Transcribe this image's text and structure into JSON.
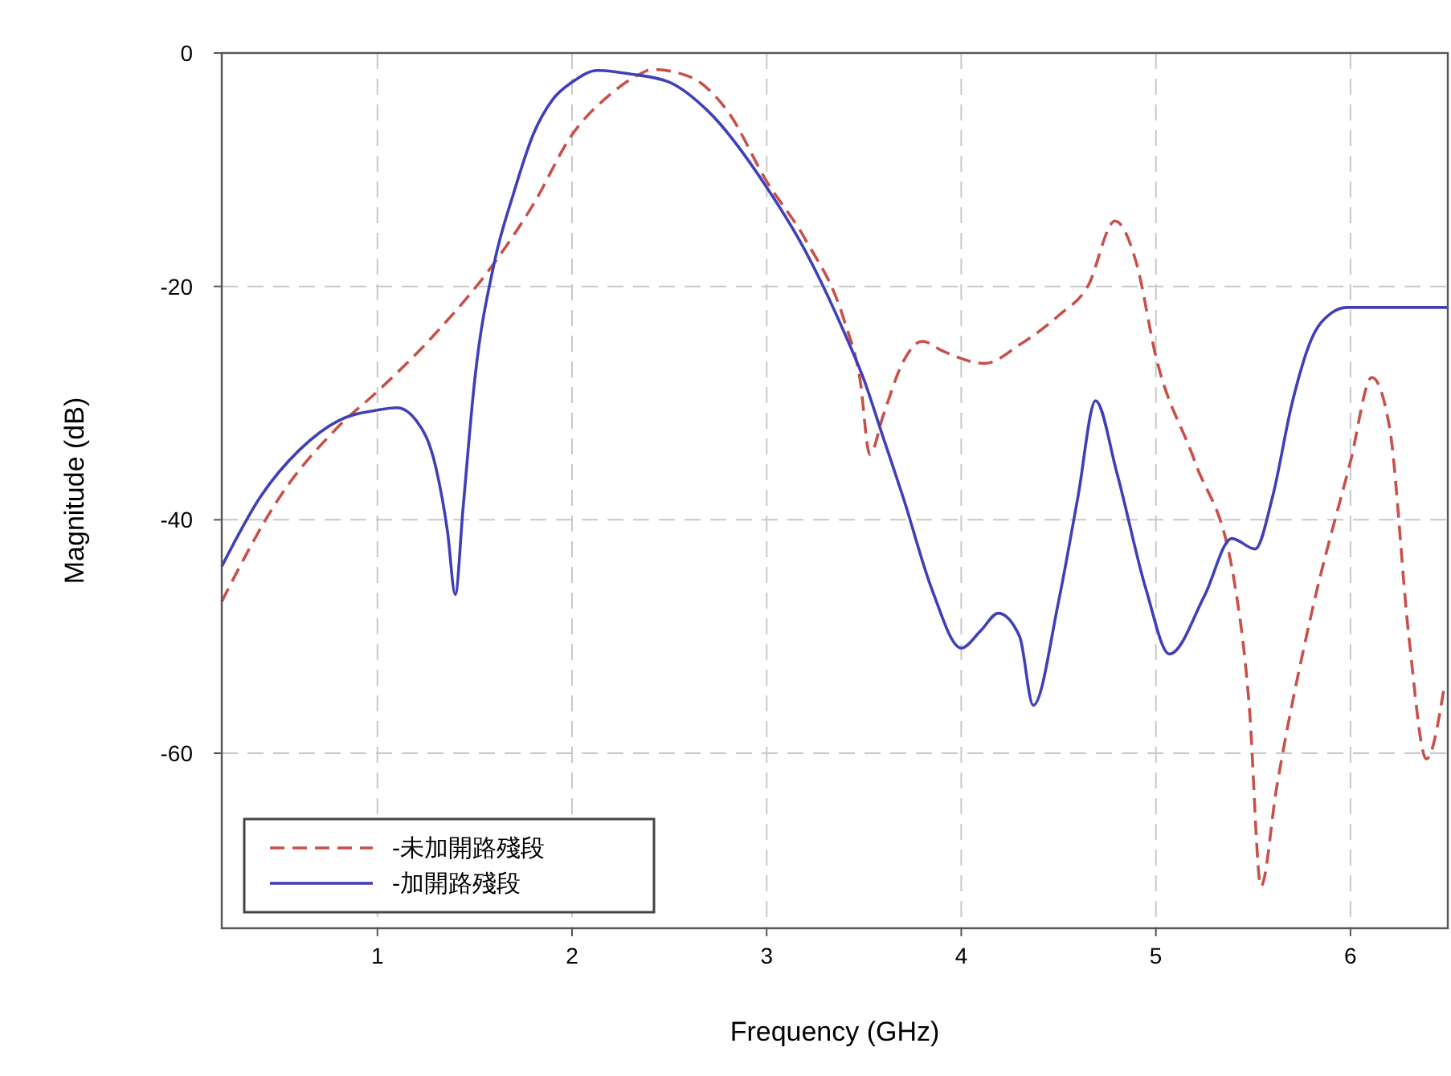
{
  "chart_data": {
    "type": "line",
    "xlabel": "Frequency (GHz)",
    "ylabel": "Magnitude (dB)",
    "xlim": [
      0.2,
      6.5
    ],
    "xticks": [
      1,
      2,
      3,
      4,
      5,
      6
    ],
    "ylim": [
      -75,
      0
    ],
    "yticks": [
      0,
      -20,
      -40,
      -60
    ],
    "grid": true,
    "legend": "bottom left",
    "series": [
      {
        "name": "-未加開路殘段",
        "color": "#c8504a",
        "line_style": "dashed",
        "x": [
          0.2,
          0.5,
          0.8,
          1.0,
          1.3,
          1.6,
          1.8,
          2.0,
          2.2,
          2.35,
          2.41,
          2.6,
          2.8,
          3.0,
          3.2,
          3.4,
          3.48,
          3.53,
          3.6,
          3.7,
          3.8,
          3.9,
          4.12,
          4.3,
          4.5,
          4.65,
          4.79,
          4.9,
          5.0,
          5.2,
          5.4,
          5.48,
          5.54,
          5.62,
          5.8,
          6.0,
          6.11,
          6.2,
          6.3,
          6.39,
          6.48
        ],
        "values": [
          -47,
          -38,
          -32,
          -29,
          -24,
          -18,
          -13,
          -7,
          -3.5,
          -1.8,
          -1.4,
          -2,
          -5,
          -11,
          -16,
          -23,
          -28,
          -34.4,
          -31,
          -26.5,
          -24.7,
          -25.5,
          -26.6,
          -25,
          -22.5,
          -20,
          -14.4,
          -18,
          -26,
          -35,
          -45,
          -56,
          -71.4,
          -63,
          -48,
          -35,
          -27.8,
          -32,
          -50,
          -60.5,
          -54.5
        ]
      },
      {
        "name": "-加開路殘段",
        "color": "#3f3fb8",
        "line_style": "solid",
        "x": [
          0.2,
          0.4,
          0.6,
          0.8,
          1.0,
          1.1,
          1.2,
          1.3,
          1.36,
          1.4,
          1.44,
          1.5,
          1.6,
          1.7,
          1.8,
          1.9,
          2.0,
          2.13,
          2.3,
          2.5,
          2.7,
          3.0,
          3.2,
          3.4,
          3.5,
          3.6,
          3.7,
          3.85,
          4.0,
          4.1,
          4.19,
          4.3,
          4.37,
          4.5,
          4.6,
          4.69,
          4.8,
          4.95,
          5.07,
          5.25,
          5.39,
          5.51,
          5.6,
          5.7,
          5.8,
          5.9,
          5.98,
          6.5
        ],
        "values": [
          -44,
          -38,
          -34,
          -31.5,
          -30.6,
          -30.4,
          -31.5,
          -35.5,
          -41,
          -46.4,
          -39,
          -28,
          -18,
          -12,
          -7,
          -4,
          -2.5,
          -1.5,
          -1.8,
          -2.5,
          -5,
          -11.5,
          -17,
          -24,
          -28,
          -33,
          -38,
          -46,
          -51,
          -49.5,
          -48,
          -50,
          -55.9,
          -47,
          -38,
          -29.8,
          -36,
          -46,
          -51.5,
          -46.5,
          -41.6,
          -42.5,
          -38,
          -30,
          -24.5,
          -22.3,
          -21.8,
          -21.8
        ]
      }
    ]
  }
}
